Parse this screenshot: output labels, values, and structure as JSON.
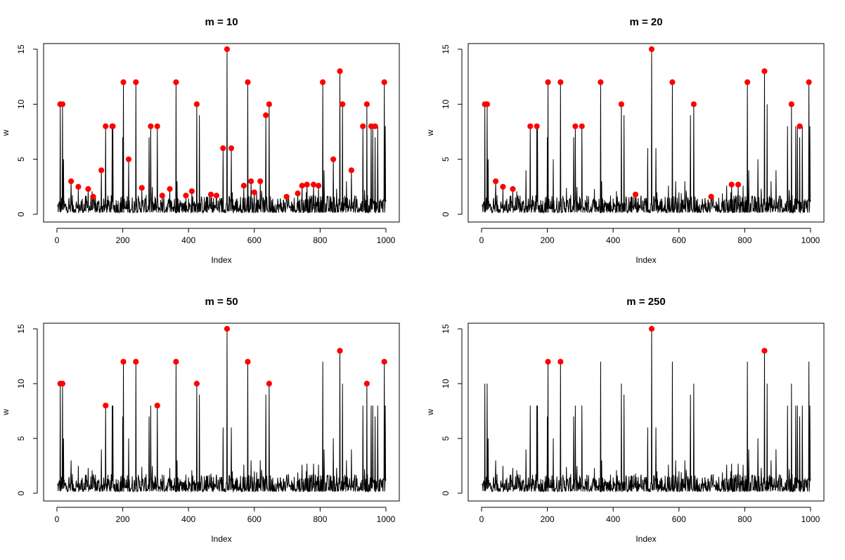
{
  "chart_data": [
    {
      "type": "line",
      "title": "m = 10",
      "xlabel": "Index",
      "ylabel": "w",
      "xlim": [
        0,
        1000
      ],
      "ylim": [
        0,
        15
      ],
      "xticks": [
        0,
        200,
        400,
        600,
        800,
        1000
      ],
      "yticks": [
        0,
        5,
        10,
        15
      ],
      "grid": false,
      "series": [
        {
          "type": "line",
          "color": "#000000",
          "note": "noisy baseline (values ~0.2–2.5) with spikes at the x positions listed",
          "spikes": {
            "x": [
              10,
              17,
              20,
              43,
              65,
              95,
              110,
              135,
              148,
              168,
              170,
              200,
              202,
              218,
              240,
              258,
              280,
              285,
              305,
              320,
              343,
              362,
              365,
              392,
              410,
              425,
              433,
              468,
              485,
              505,
              517,
              530,
              568,
              580,
              590,
              600,
              618,
              635,
              645,
              698,
              732,
              745,
              760,
              780,
              795,
              808,
              812,
              840,
              860,
              868,
              880,
              895,
              930,
              942,
              955,
              960,
              967,
              975,
              995,
              998
            ],
            "y": [
              10,
              10,
              5,
              3,
              2.5,
              2.3,
              1.6,
              4,
              8,
              8,
              8,
              7,
              12,
              5,
              12,
              2.4,
              7,
              8,
              8,
              1.7,
              2.3,
              12,
              3,
              1.7,
              2.1,
              10,
              9,
              1.8,
              1.7,
              6,
              15,
              6,
              2.6,
              12,
              3,
              2,
              3,
              9,
              10,
              1.6,
              1.9,
              2.6,
              2.7,
              2.7,
              2.6,
              12,
              4,
              5,
              13,
              10,
              3,
              4,
              8,
              10,
              8,
              8,
              7,
              8,
              12,
              8
            ]
          }
        },
        {
          "type": "points",
          "color": "#ff0000",
          "x": [
            10,
            17,
            43,
            65,
            95,
            110,
            135,
            148,
            168,
            170,
            202,
            218,
            240,
            258,
            285,
            305,
            320,
            343,
            362,
            392,
            410,
            425,
            468,
            485,
            505,
            517,
            530,
            568,
            580,
            590,
            600,
            618,
            635,
            645,
            698,
            732,
            745,
            760,
            780,
            795,
            808,
            840,
            860,
            868,
            895,
            930,
            942,
            955,
            967,
            995
          ],
          "y": [
            10,
            10,
            3,
            2.5,
            2.3,
            1.6,
            4,
            8,
            8,
            8,
            12,
            5,
            12,
            2.4,
            8,
            8,
            1.7,
            2.3,
            12,
            1.7,
            2.1,
            10,
            1.8,
            1.7,
            6,
            15,
            6,
            2.6,
            12,
            3,
            2,
            3,
            9,
            10,
            1.6,
            1.9,
            2.6,
            2.7,
            2.7,
            2.6,
            12,
            5,
            13,
            10,
            4,
            8,
            10,
            8,
            8,
            12
          ]
        }
      ]
    },
    {
      "type": "line",
      "title": "m = 20",
      "xlabel": "Index",
      "ylabel": "w",
      "xlim": [
        0,
        1000
      ],
      "ylim": [
        0,
        15
      ],
      "xticks": [
        0,
        200,
        400,
        600,
        800,
        1000
      ],
      "yticks": [
        0,
        5,
        10,
        15
      ],
      "grid": false,
      "series": [
        {
          "type": "line",
          "color": "#000000",
          "note": "same underlying series as panel m = 10",
          "spikes": {
            "x": [
              10,
              17,
              20,
              43,
              65,
              95,
              110,
              135,
              148,
              168,
              170,
              200,
              202,
              218,
              240,
              258,
              280,
              285,
              305,
              320,
              343,
              362,
              365,
              392,
              410,
              425,
              433,
              468,
              485,
              505,
              517,
              530,
              568,
              580,
              590,
              600,
              618,
              635,
              645,
              698,
              732,
              745,
              760,
              780,
              795,
              808,
              812,
              840,
              860,
              868,
              880,
              895,
              930,
              942,
              955,
              960,
              967,
              975,
              995,
              998
            ],
            "y": [
              10,
              10,
              5,
              3,
              2.5,
              2.3,
              1.6,
              4,
              8,
              8,
              8,
              7,
              12,
              5,
              12,
              2.4,
              7,
              8,
              8,
              1.7,
              2.3,
              12,
              3,
              1.7,
              2.1,
              10,
              9,
              1.8,
              1.7,
              6,
              15,
              6,
              2.6,
              12,
              3,
              2,
              3,
              9,
              10,
              1.6,
              1.9,
              2.6,
              2.7,
              2.7,
              2.6,
              12,
              4,
              5,
              13,
              10,
              3,
              4,
              8,
              10,
              8,
              8,
              7,
              8,
              12,
              8
            ]
          }
        },
        {
          "type": "points",
          "color": "#ff0000",
          "x": [
            10,
            17,
            43,
            65,
            95,
            148,
            168,
            202,
            240,
            285,
            305,
            362,
            425,
            468,
            517,
            580,
            645,
            698,
            760,
            780,
            808,
            860,
            942,
            967,
            995
          ],
          "y": [
            10,
            10,
            3,
            2.5,
            2.3,
            8,
            8,
            12,
            12,
            8,
            8,
            12,
            10,
            1.8,
            15,
            12,
            10,
            1.6,
            2.7,
            2.7,
            12,
            13,
            10,
            8,
            12
          ]
        }
      ]
    },
    {
      "type": "line",
      "title": "m = 50",
      "xlabel": "Index",
      "ylabel": "w",
      "xlim": [
        0,
        1000
      ],
      "ylim": [
        0,
        15
      ],
      "xticks": [
        0,
        200,
        400,
        600,
        800,
        1000
      ],
      "yticks": [
        0,
        5,
        10,
        15
      ],
      "grid": false,
      "series": [
        {
          "type": "line",
          "color": "#000000",
          "note": "same underlying series as panel m = 10",
          "spikes": {
            "x": [
              10,
              17,
              20,
              43,
              65,
              95,
              110,
              135,
              148,
              168,
              170,
              200,
              202,
              218,
              240,
              258,
              280,
              285,
              305,
              320,
              343,
              362,
              365,
              392,
              410,
              425,
              433,
              468,
              485,
              505,
              517,
              530,
              568,
              580,
              590,
              600,
              618,
              635,
              645,
              698,
              732,
              745,
              760,
              780,
              795,
              808,
              812,
              840,
              860,
              868,
              880,
              895,
              930,
              942,
              955,
              960,
              967,
              975,
              995,
              998
            ],
            "y": [
              10,
              10,
              5,
              3,
              2.5,
              2.3,
              1.6,
              4,
              8,
              8,
              8,
              7,
              12,
              5,
              12,
              2.4,
              7,
              8,
              8,
              1.7,
              2.3,
              12,
              3,
              1.7,
              2.1,
              10,
              9,
              1.8,
              1.7,
              6,
              15,
              6,
              2.6,
              12,
              3,
              2,
              3,
              9,
              10,
              1.6,
              1.9,
              2.6,
              2.7,
              2.7,
              2.6,
              12,
              4,
              5,
              13,
              10,
              3,
              4,
              8,
              10,
              8,
              8,
              7,
              8,
              12,
              8
            ]
          }
        },
        {
          "type": "points",
          "color": "#ff0000",
          "x": [
            10,
            17,
            148,
            202,
            240,
            305,
            362,
            425,
            517,
            580,
            645,
            860,
            942,
            995
          ],
          "y": [
            10,
            10,
            8,
            12,
            12,
            8,
            12,
            10,
            15,
            12,
            10,
            13,
            10,
            12
          ]
        }
      ]
    },
    {
      "type": "line",
      "title": "m = 250",
      "xlabel": "Index",
      "ylabel": "w",
      "xlim": [
        0,
        1000
      ],
      "ylim": [
        0,
        15
      ],
      "xticks": [
        0,
        200,
        400,
        600,
        800,
        1000
      ],
      "yticks": [
        0,
        5,
        10,
        15
      ],
      "grid": false,
      "series": [
        {
          "type": "line",
          "color": "#000000",
          "note": "same underlying series as panel m = 10",
          "spikes": {
            "x": [
              10,
              17,
              20,
              43,
              65,
              95,
              110,
              135,
              148,
              168,
              170,
              200,
              202,
              218,
              240,
              258,
              280,
              285,
              305,
              320,
              343,
              362,
              365,
              392,
              410,
              425,
              433,
              468,
              485,
              505,
              517,
              530,
              568,
              580,
              590,
              600,
              618,
              635,
              645,
              698,
              732,
              745,
              760,
              780,
              795,
              808,
              812,
              840,
              860,
              868,
              880,
              895,
              930,
              942,
              955,
              960,
              967,
              975,
              995,
              998
            ],
            "y": [
              10,
              10,
              5,
              3,
              2.5,
              2.3,
              1.6,
              4,
              8,
              8,
              8,
              7,
              12,
              5,
              12,
              2.4,
              7,
              8,
              8,
              1.7,
              2.3,
              12,
              3,
              1.7,
              2.1,
              10,
              9,
              1.8,
              1.7,
              6,
              15,
              6,
              2.6,
              12,
              3,
              2,
              3,
              9,
              10,
              1.6,
              1.9,
              2.6,
              2.7,
              2.7,
              2.6,
              12,
              4,
              5,
              13,
              10,
              3,
              4,
              8,
              10,
              8,
              8,
              7,
              8,
              12,
              8
            ]
          }
        },
        {
          "type": "points",
          "color": "#ff0000",
          "x": [
            202,
            240,
            517,
            860
          ],
          "y": [
            12,
            12,
            15,
            13
          ]
        }
      ]
    }
  ]
}
